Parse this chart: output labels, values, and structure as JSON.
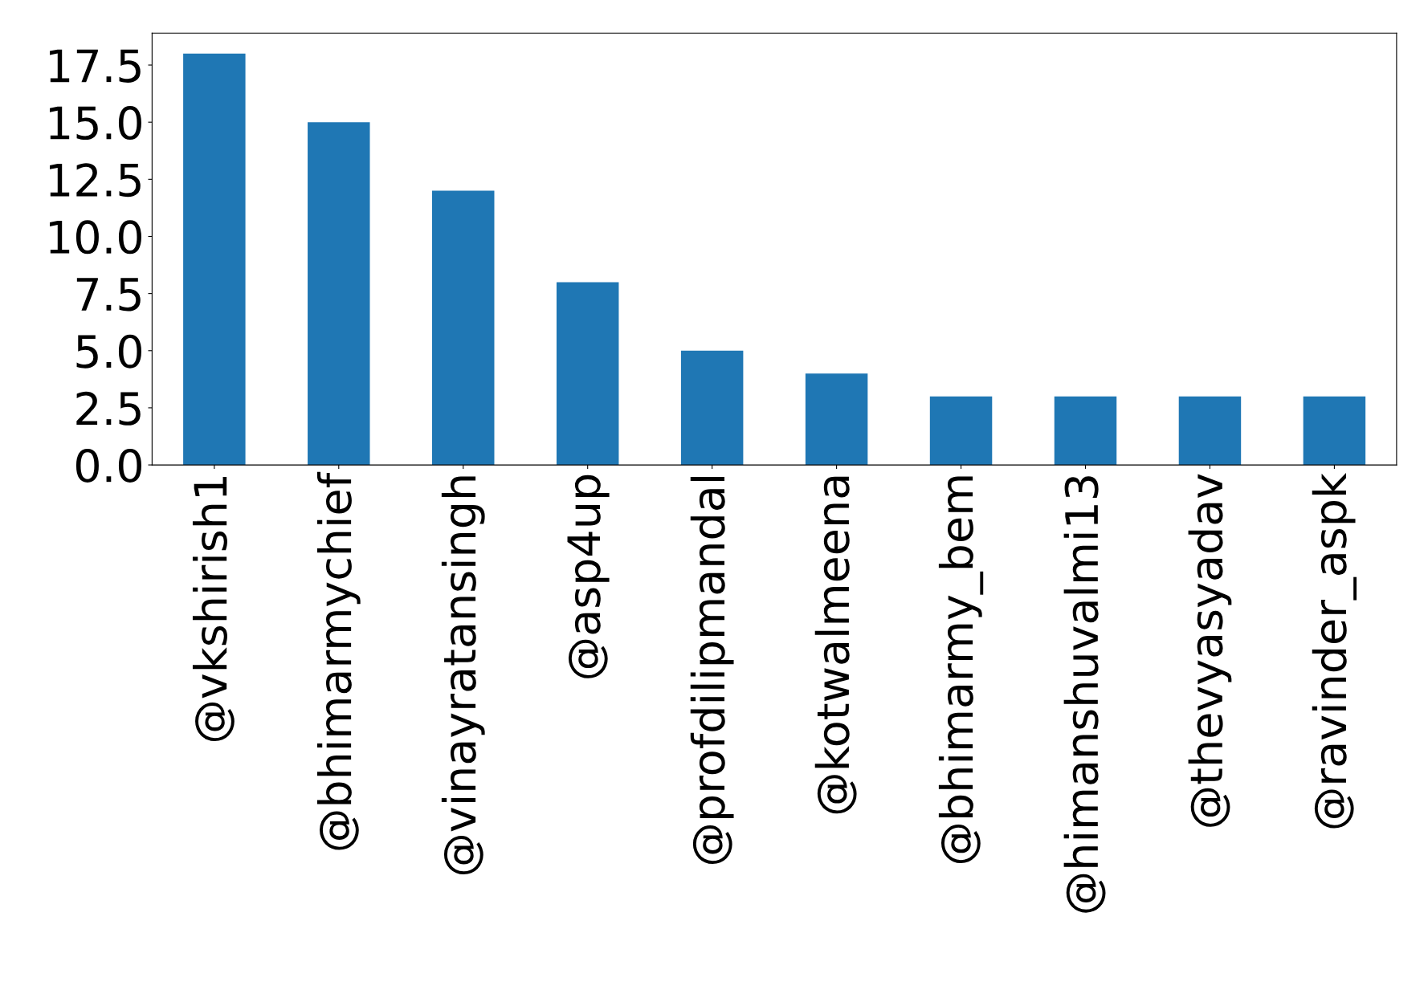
{
  "chart_data": {
    "type": "bar",
    "categories": [
      "@vkshirish1",
      "@bhimarmychief",
      "@vinayratansingh",
      "@asp4up",
      "@profdilipmandal",
      "@kotwalmeena",
      "@bhimarmy_bem",
      "@himanshuvalmi13",
      "@thevyasyadav",
      "@ravinder_aspk"
    ],
    "values": [
      18,
      15,
      12,
      8,
      5,
      4,
      3,
      3,
      3,
      3
    ],
    "color": "#1f77b4",
    "ylim": [
      0,
      18.9
    ],
    "yticks": [
      {
        "value": 0,
        "label": "0.0"
      },
      {
        "value": 2.5,
        "label": "2.5"
      },
      {
        "value": 5,
        "label": "5.0"
      },
      {
        "value": 7.5,
        "label": "7.5"
      },
      {
        "value": 10,
        "label": "10.0"
      },
      {
        "value": 12.5,
        "label": "12.5"
      },
      {
        "value": 15,
        "label": "15.0"
      },
      {
        "value": 17.5,
        "label": "17.5"
      }
    ],
    "grid": false,
    "legend": false
  }
}
